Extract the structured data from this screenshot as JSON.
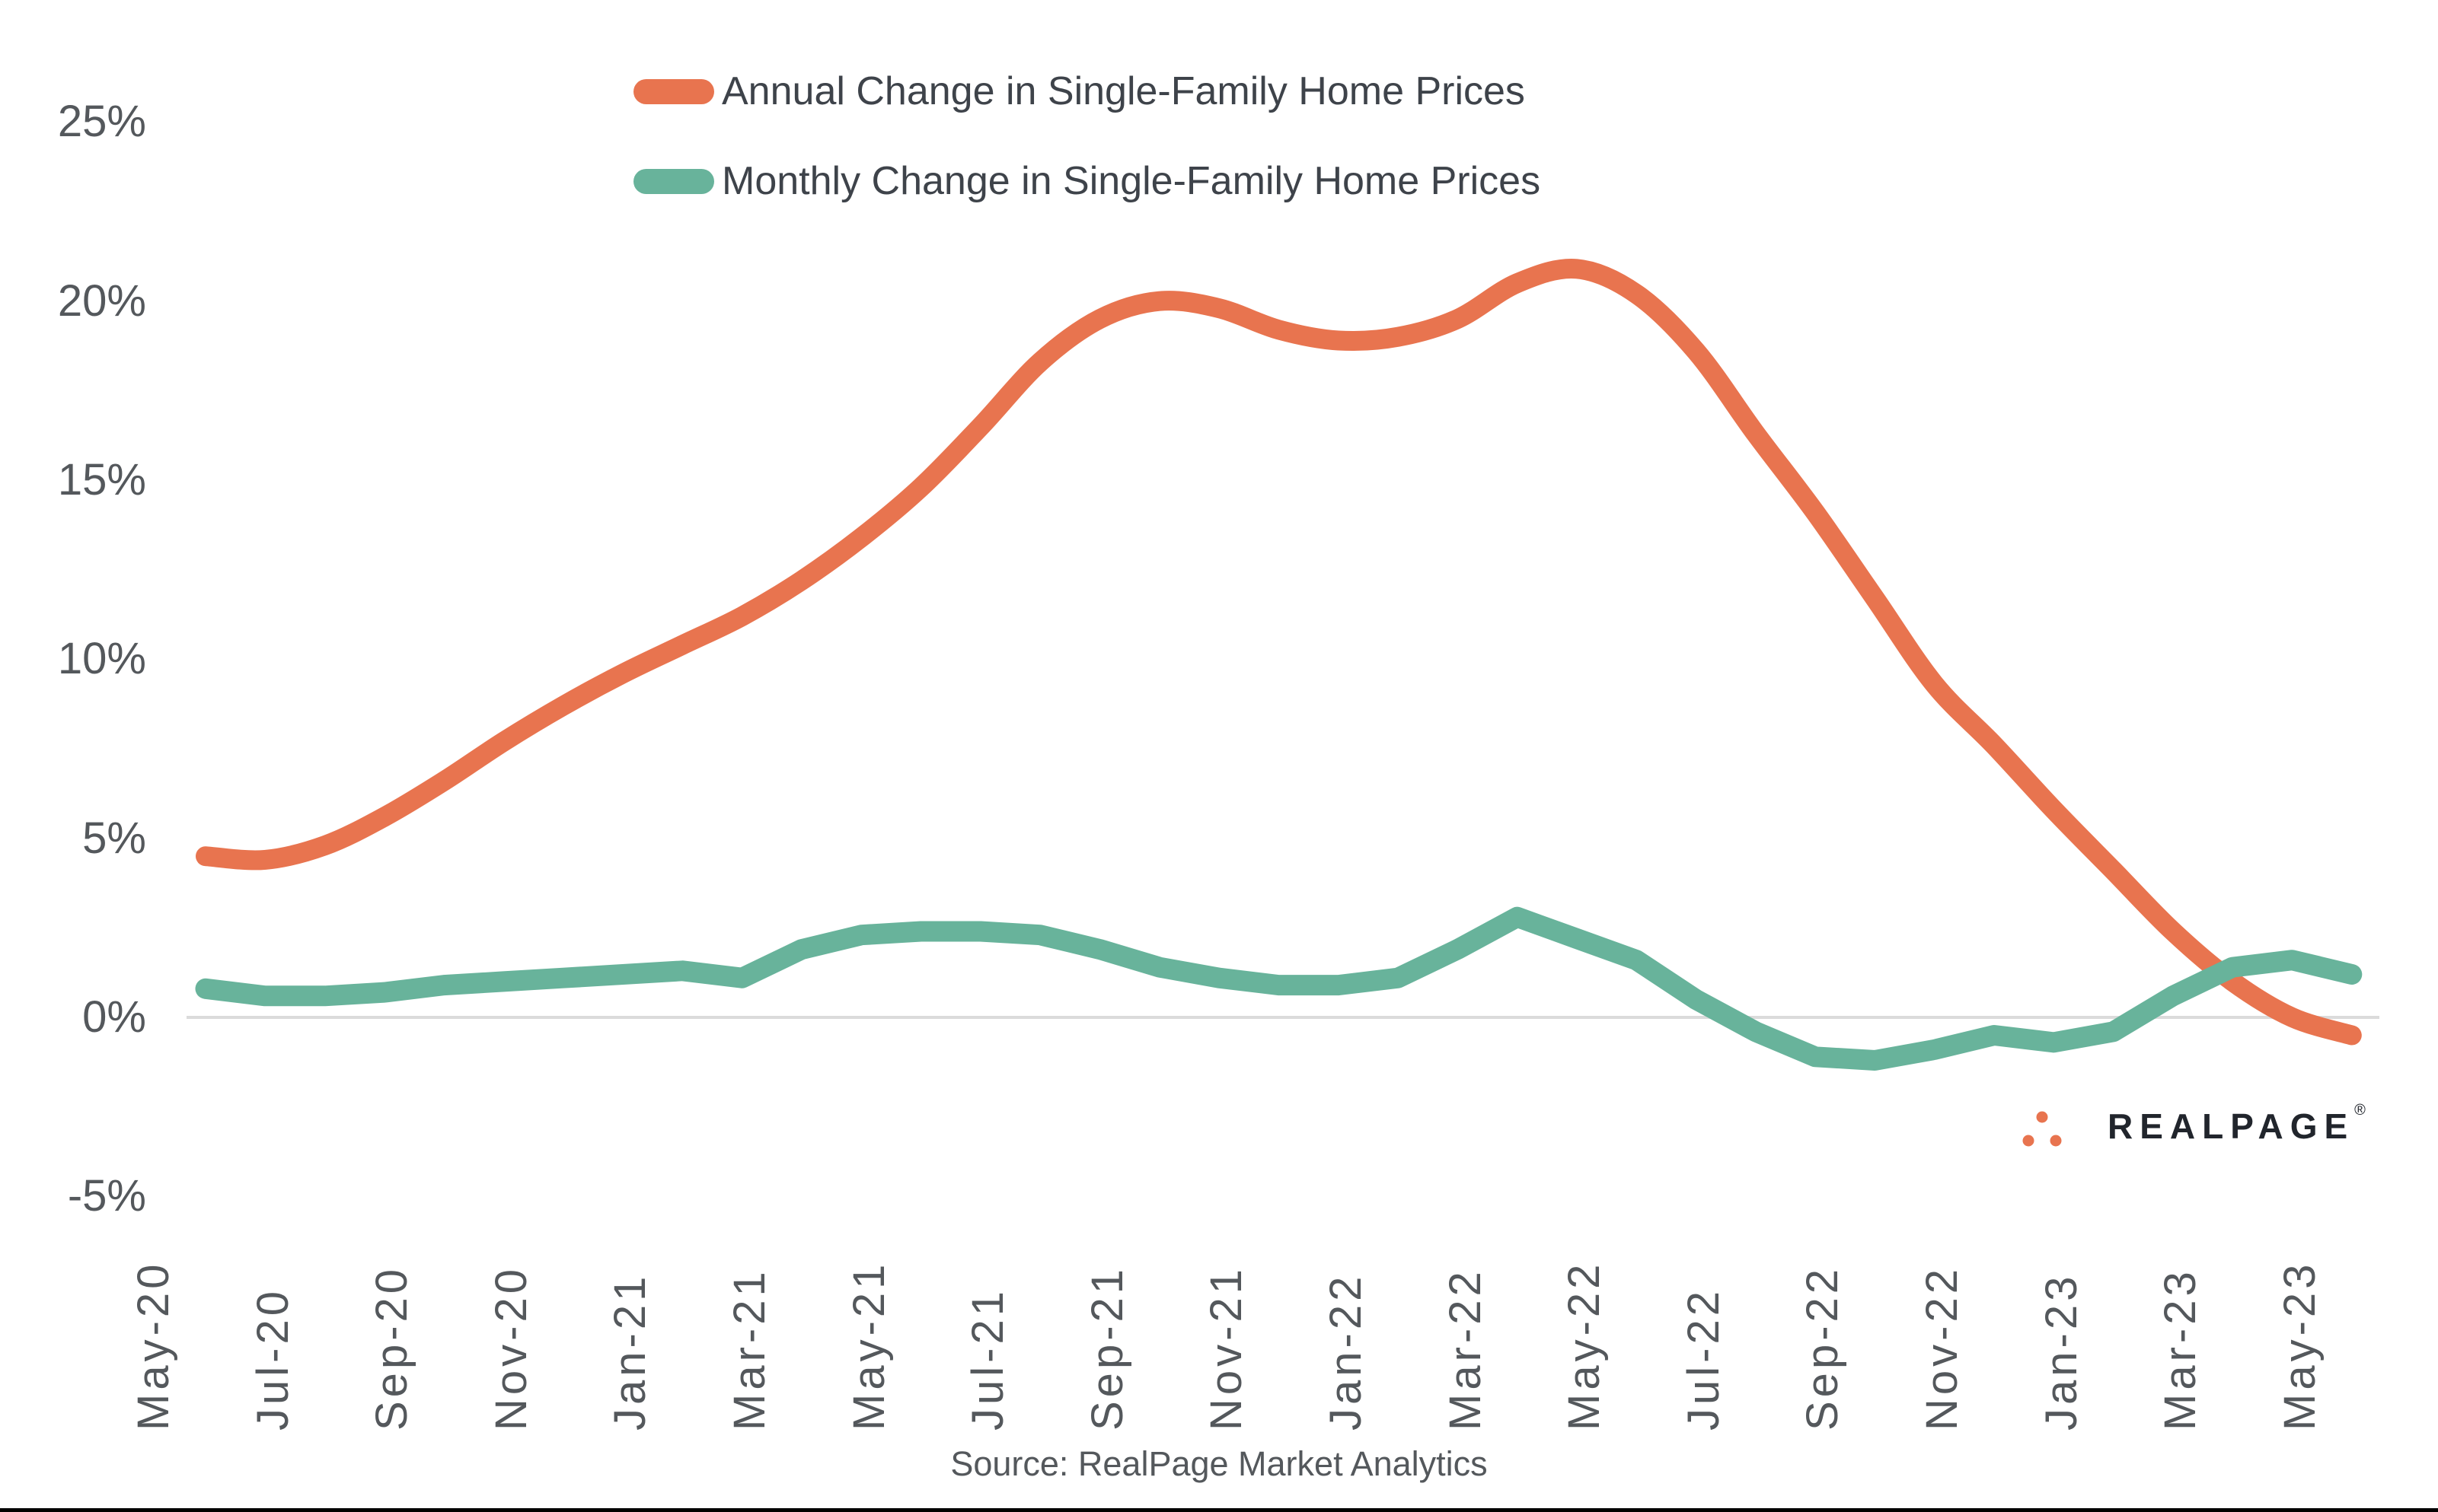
{
  "source": "Source: RealPage Market Analytics",
  "logo": {
    "text": "REALPAGE",
    "registered": "®",
    "icon": "three-dots-triangle"
  },
  "colors": {
    "annual_line": "#E8744F",
    "monthly_line": "#68B39B",
    "zero_gridline": "#DBDBDB",
    "axis_text": "#54585C",
    "legend_text": "#3E434A",
    "logo_text": "#21252C",
    "bottom_edge": "#000000"
  },
  "chart_data": {
    "type": "line",
    "title": "",
    "xlabel": "",
    "ylabel": "",
    "ylim": [
      -5,
      25
    ],
    "grid": "horizontal zero line only",
    "legend_position": "top-center",
    "x": [
      "May-20",
      "Jun-20",
      "Jul-20",
      "Aug-20",
      "Sep-20",
      "Oct-20",
      "Nov-20",
      "Dec-20",
      "Jan-21",
      "Feb-21",
      "Mar-21",
      "Apr-21",
      "May-21",
      "Jun-21",
      "Jul-21",
      "Aug-21",
      "Sep-21",
      "Oct-21",
      "Nov-21",
      "Dec-21",
      "Jan-22",
      "Feb-22",
      "Mar-22",
      "Apr-22",
      "May-22",
      "Jun-22",
      "Jul-22",
      "Aug-22",
      "Sep-22",
      "Oct-22",
      "Nov-22",
      "Dec-22",
      "Jan-23",
      "Feb-23",
      "Mar-23",
      "Apr-23",
      "May-23"
    ],
    "x_tick_labels": [
      "May-20",
      "Jul-20",
      "Sep-20",
      "Nov-20",
      "Jan-21",
      "Mar-21",
      "May-21",
      "Jul-21",
      "Sep-21",
      "Nov-21",
      "Jan-22",
      "Mar-22",
      "May-22",
      "Jul-22",
      "Sep-22",
      "Nov-22",
      "Jan-23",
      "Mar-23",
      "May-23"
    ],
    "y_ticks": [
      25,
      20,
      15,
      10,
      5,
      0,
      -5
    ],
    "y_tick_labels": [
      "25%",
      "20%",
      "15%",
      "10%",
      "5%",
      "0%",
      "-5%"
    ],
    "series": [
      {
        "name": "Annual Change in Single-Family Home Prices",
        "color": "#E8744F",
        "style": "smooth",
        "values": [
          4.5,
          4.4,
          4.8,
          5.6,
          6.6,
          7.7,
          8.7,
          9.6,
          10.4,
          11.2,
          12.2,
          13.4,
          14.8,
          16.5,
          18.3,
          19.5,
          20.0,
          19.8,
          19.2,
          18.9,
          19.0,
          19.5,
          20.5,
          20.9,
          20.2,
          18.6,
          16.3,
          14.1,
          11.7,
          9.3,
          7.6,
          5.8,
          4.1,
          2.4,
          1.0,
          0.0,
          -0.5
        ]
      },
      {
        "name": "Monthly Change in Single-Family Home Prices",
        "color": "#68B39B",
        "style": "straight",
        "values": [
          0.8,
          0.6,
          0.6,
          0.7,
          0.9,
          1.0,
          1.1,
          1.2,
          1.3,
          1.1,
          1.9,
          2.3,
          2.4,
          2.4,
          2.3,
          1.9,
          1.4,
          1.1,
          0.9,
          0.9,
          1.1,
          1.9,
          2.8,
          2.2,
          1.6,
          0.5,
          -0.4,
          -1.1,
          -1.2,
          -0.9,
          -0.5,
          -0.7,
          -0.4,
          0.6,
          1.4,
          1.6,
          1.2
        ]
      }
    ]
  }
}
